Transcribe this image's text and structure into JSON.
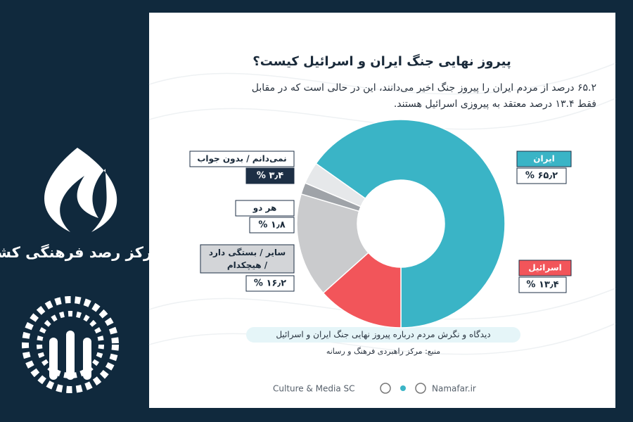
{
  "logo_text": "مرکز رصد فرهنگی کشور",
  "chart_data": {
    "type": "pie",
    "title": "پیروز نهایی جنگ ایران و اسرائیل کیست؟",
    "subtitle": [
      "۶۵.۲ درصد از مردم ایران را پیروز جنگ اخیر می‌دانند، این در حالی است که در مقابل",
      "فقط ۱۳.۴ درصد معتقد به پیروزی اسرائیل هستند."
    ],
    "categories": [
      "ایران",
      "اسرائیل",
      "سایر / بستگی دارد / هیچکدام",
      "هر دو",
      "نمی‌دانم / بدون جواب"
    ],
    "values": [
      65.2,
      13.4,
      16.2,
      1.8,
      3.4
    ],
    "value_labels": [
      "۶۵٫۲ %",
      "۱۳٫۴ %",
      "۱۶٫۲ %",
      "۱٫۸ %",
      "۳٫۴ %"
    ],
    "colors": [
      "#3ab4c6",
      "#f2555a",
      "#cacbcd",
      "#9fa3a8",
      "#e6e8ea"
    ],
    "caption": "دیدگاه و نگرش مردم درباره پیروز نهایی جنگ ایران و اسرائیل",
    "source": "منبع: مرکز راهبردی فرهنگ و رسانه"
  },
  "footer": {
    "left": "Culture & Media SC",
    "right": "Namafar.ir"
  }
}
